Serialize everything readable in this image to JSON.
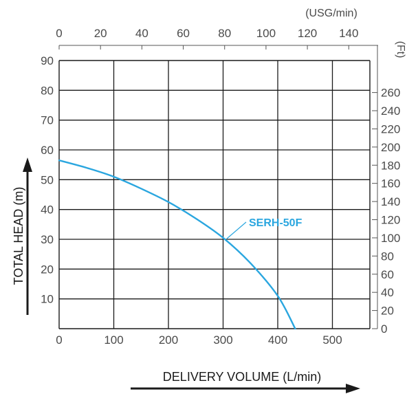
{
  "chart_data": {
    "type": "line",
    "xlabel": "DELIVERY VOLUME (L/min)",
    "ylabel": "TOTAL HEAD (m)",
    "xlim": [
      0,
      565
    ],
    "ylim": [
      0,
      90
    ],
    "x_ticks": [
      "0",
      "100",
      "200",
      "300",
      "400",
      "500"
    ],
    "y_ticks": [
      "10",
      "20",
      "30",
      "40",
      "50",
      "60",
      "70",
      "80",
      "90"
    ],
    "grid": true,
    "top_axis": {
      "unit": "(USG/min)",
      "ticks": [
        "0",
        "20",
        "40",
        "60",
        "80",
        "100",
        "120",
        "140"
      ]
    },
    "right_axis": {
      "unit": "(Ft)",
      "ticks": [
        "0",
        "20",
        "40",
        "60",
        "80",
        "100",
        "120",
        "140",
        "160",
        "180",
        "200",
        "220",
        "240",
        "260"
      ]
    },
    "series": [
      {
        "name": "SERH-50F",
        "color": "#2aa6df",
        "x": [
          0,
          50,
          100,
          150,
          200,
          250,
          300,
          350,
          400,
          432
        ],
        "y": [
          56.5,
          54.0,
          51.0,
          47.0,
          42.5,
          37.0,
          30.5,
          22.0,
          11.0,
          0
        ]
      }
    ]
  }
}
